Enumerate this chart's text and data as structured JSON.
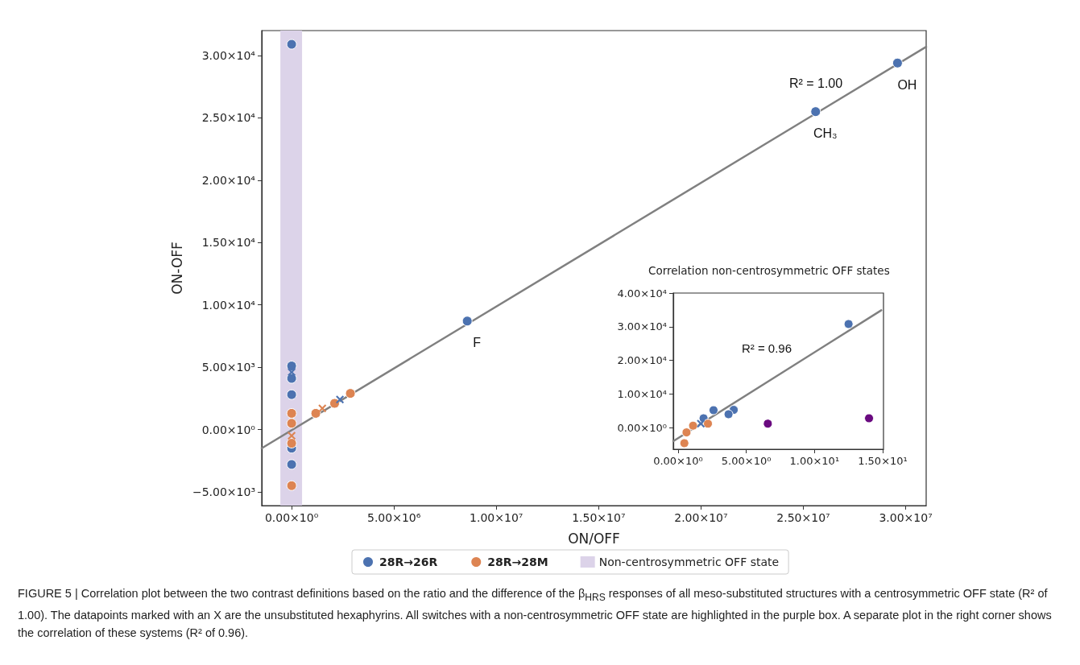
{
  "chart_data": [
    {
      "type": "scatter",
      "xlabel": "ON/OFF",
      "ylabel": "ON-OFF",
      "xlim": [
        -1460000,
        31000000
      ],
      "xticks": [
        {
          "value": 0,
          "label": "0.00×10⁰"
        },
        {
          "value": 5000000,
          "label": "5.00×10⁶"
        },
        {
          "value": 10000000,
          "label": "1.00×10⁷"
        },
        {
          "value": 15000000,
          "label": "1.50×10⁷"
        },
        {
          "value": 20000000,
          "label": "2.00×10⁷"
        },
        {
          "value": 25000000,
          "label": "2.50×10⁷"
        },
        {
          "value": 30000000,
          "label": "3.00×10⁷"
        }
      ],
      "ylim": [
        -6100,
        32000
      ],
      "yticks": [
        {
          "value": -5000,
          "label": "−5.00×10³"
        },
        {
          "value": 0,
          "label": "0.00×10⁰"
        },
        {
          "value": 5000,
          "label": "5.00×10³"
        },
        {
          "value": 10000,
          "label": "1.00×10⁴"
        },
        {
          "value": 15000,
          "label": "1.50×10⁴"
        },
        {
          "value": 20000,
          "label": "2.00×10⁴"
        },
        {
          "value": 25000,
          "label": "2.50×10⁴"
        },
        {
          "value": 30000,
          "label": "3.00×10⁴"
        }
      ],
      "grid": false,
      "legend": "bottom",
      "series": [
        {
          "name": "28R→26R",
          "color": "#4c72b0",
          "marker": "circle",
          "x": [
            0,
            0,
            0,
            0,
            0,
            0,
            8580000,
            25600000,
            29600000
          ],
          "values": [
            30900,
            5100,
            4100,
            2800,
            -1500,
            -2800,
            8700,
            25500,
            29400
          ]
        },
        {
          "name": "28R→28M",
          "color": "#dd8452",
          "marker": "circle",
          "x": [
            0,
            0,
            0,
            0,
            1180000,
            2100000,
            2870000
          ],
          "values": [
            1300,
            500,
            -1100,
            -4500,
            1300,
            2100,
            2900
          ]
        },
        {
          "color": "#4c72b0",
          "marker": "cross",
          "x": [
            0,
            2360000
          ],
          "values": [
            4600,
            2400
          ]
        },
        {
          "color": "#dd8452",
          "marker": "cross",
          "x": [
            0,
            1500000
          ],
          "values": [
            -500,
            1700
          ]
        },
        {
          "type": "line",
          "color": "#808080",
          "marker": "none",
          "line_style": "solid",
          "x": [
            -1460000,
            31000000
          ],
          "values": [
            -1500,
            30700
          ]
        }
      ],
      "bands": [
        {
          "axis": "x",
          "from": -550000,
          "to": 510000,
          "label": "Non-centrosymmetric OFF state",
          "color": "#dcd3e9"
        }
      ],
      "annotations": [
        "R² = 1.00",
        {
          "text": "OH",
          "x": 29600000,
          "y": 29400
        },
        {
          "text": "CH₃",
          "x": 25600000,
          "y": 25500
        },
        {
          "text": "F",
          "x": 8580000,
          "y": 8700
        },
        "FIGURE 5 | Correlation plot between the two contrast definitions based on the ratio and the difference of the β$_{HRS}$ responses of all meso-substituted structures with a centrosymmetric OFF state (R² of 1.00). The datapoints marked with an X are the unsubstituted hexaphyrins. All switches with a non-centrosymmetric OFF state are highlighted in the purple box. A separate plot in the right corner shows the correlation of these systems (R² of 0.96)."
      ]
    },
    {
      "type": "scatter",
      "title": "Correlation non-centrosymmetric OFF states",
      "xlim": [
        -0.35,
        15.06
      ],
      "xticks": [
        {
          "value": 0,
          "label": "0.00×10⁰"
        },
        {
          "value": 5,
          "label": "5.00×10⁰"
        },
        {
          "value": 10,
          "label": "1.00×10¹"
        },
        {
          "value": 15,
          "label": "1.50×10¹"
        }
      ],
      "ylim": [
        -6400,
        40000
      ],
      "yticks": [
        {
          "value": 0,
          "label": "0.00×10⁰"
        },
        {
          "value": 10000,
          "label": "1.00×10⁴"
        },
        {
          "value": 20000,
          "label": "2.00×10⁴"
        },
        {
          "value": 30000,
          "label": "3.00×10⁴"
        },
        {
          "value": 40000,
          "label": "4.00×10⁴"
        }
      ],
      "grid": false,
      "series": [
        {
          "color": "#4c72b0",
          "marker": "circle",
          "x": [
            12.5,
            2.6,
            4.08,
            3.7,
            1.87
          ],
          "values": [
            30800,
            5200,
            5300,
            4000,
            2800
          ]
        },
        {
          "color": "#dd8452",
          "marker": "circle",
          "x": [
            2.19,
            1.1,
            0.62,
            0.46
          ],
          "values": [
            1200,
            600,
            -1400,
            -4600
          ]
        },
        {
          "color": "#4c72b0",
          "marker": "cross",
          "x": [
            1.67
          ],
          "values": [
            1200
          ]
        },
        {
          "color": "#6a0a80",
          "marker": "circle",
          "x": [
            6.58,
            14.0
          ],
          "values": [
            1200,
            2800
          ]
        },
        {
          "type": "line",
          "color": "#808080",
          "marker": "none",
          "line_style": "solid",
          "x": [
            -0.35,
            14.9
          ],
          "values": [
            -4000,
            34900
          ]
        }
      ],
      "annotations": [
        "R² = 0.96"
      ]
    }
  ]
}
